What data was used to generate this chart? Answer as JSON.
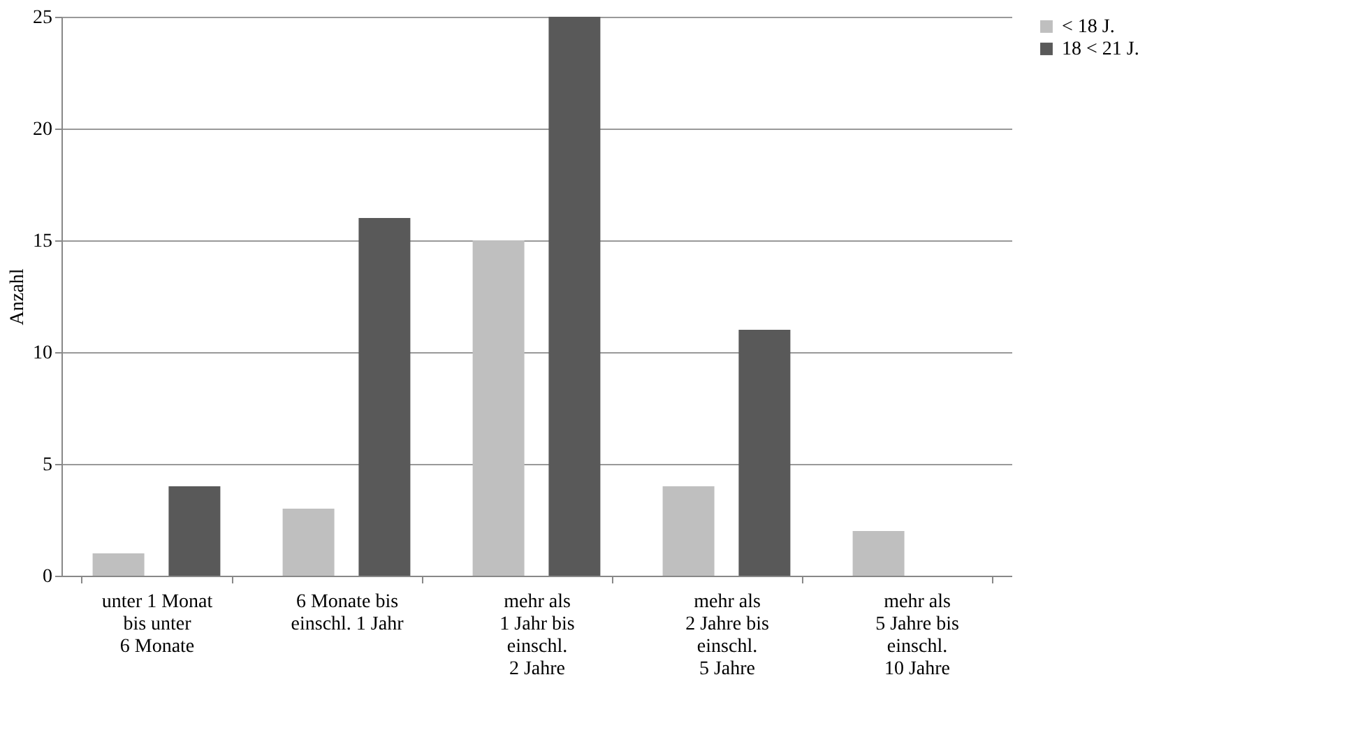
{
  "chart_data": {
    "type": "bar",
    "ylabel": "Anzahl",
    "categories": [
      "unter 1 Monat\nbis unter\n6 Monate",
      "6 Monate bis\neinschl. 1 Jahr",
      "mehr als\n1 Jahr bis\neinschl.\n2 Jahre",
      "mehr als\n2 Jahre bis\neinschl.\n5 Jahre",
      "mehr als\n5 Jahre bis\neinschl.\n10 Jahre"
    ],
    "series": [
      {
        "name": "< 18 J.",
        "color": "#bfbfbf",
        "values": [
          1,
          3,
          15,
          4,
          2
        ]
      },
      {
        "name": "18 < 21 J.",
        "color": "#595959",
        "values": [
          4,
          16,
          25,
          11,
          null
        ]
      }
    ],
    "ylim": [
      0,
      25
    ],
    "yticks": [
      0,
      5,
      10,
      15,
      20,
      25
    ],
    "grid": "y",
    "legend": "right"
  }
}
